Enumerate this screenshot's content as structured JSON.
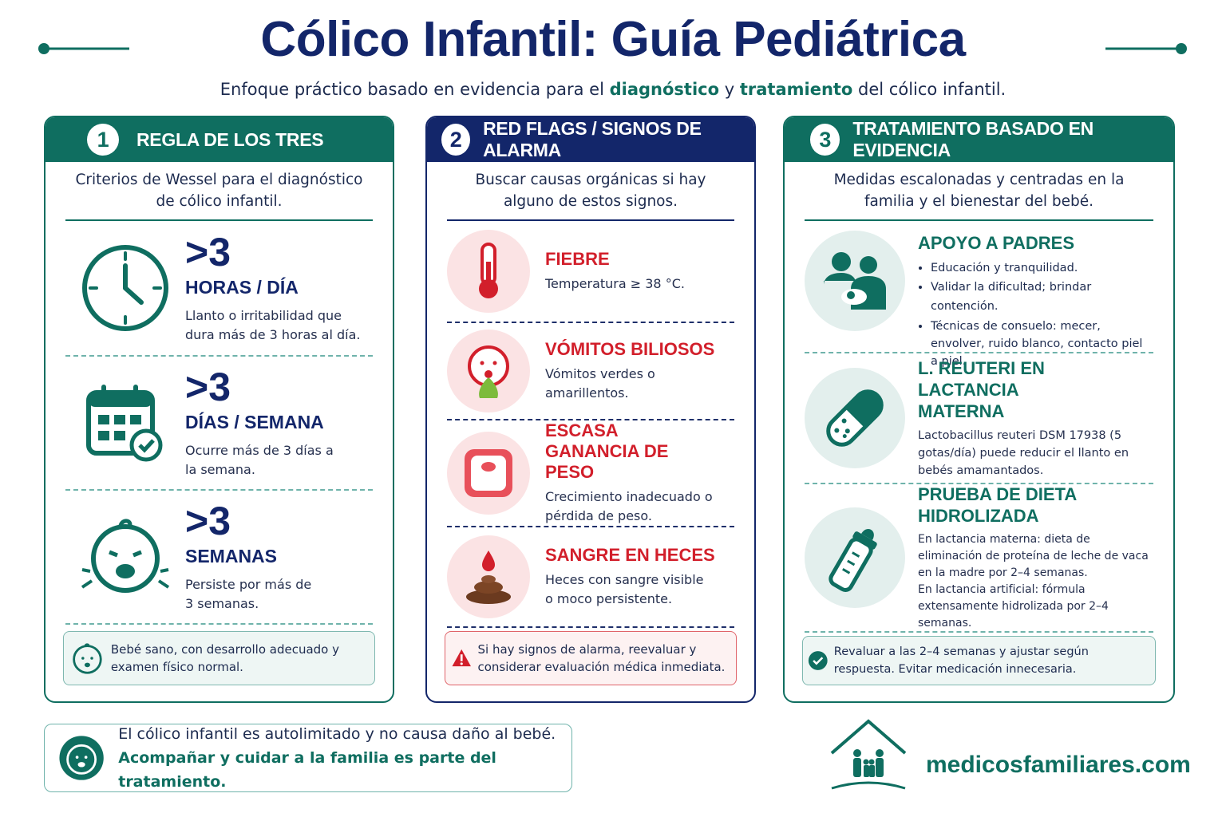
{
  "header": {
    "title": "Cólico Infantil: Guía Pediátrica",
    "subtitle": [
      "Enfoque práctico basado en evidencia para el",
      "diagnóstico",
      "y",
      "tratamiento",
      "del cólico infantil."
    ]
  },
  "panels": [
    {
      "number": 1,
      "title": "REGLA DE LOS TRES",
      "intro": "Criterios de Wessel para el diagnóstico de cólico infantil.",
      "items": [
        {
          "value": ">3",
          "label": "HORAS / DÍA",
          "text": "Llanto o irritabilidad que dura más de 3 horas al día."
        },
        {
          "value": ">3",
          "label": "DÍAS / SEMANA",
          "text": "Ocurre más de 3 días a la semana."
        },
        {
          "value": ">3",
          "label": "SEMANAS",
          "text": "Persiste por más de 3 semanas."
        }
      ],
      "note": "Bebé sano, con desarrollo adecuado y examen físico normal."
    },
    {
      "number": 2,
      "title": "RED FLAGS / SIGNOS DE ALARMA",
      "intro": "Buscar causas orgánicas si hay alguno de estos signos.",
      "items": [
        {
          "title": "FIEBRE",
          "text": "Temperatura ≥ 38 °C."
        },
        {
          "title": "VÓMITOS BILIOSOS",
          "text": "Vómitos verdes o amarillentos."
        },
        {
          "title": "ESCASA GANANCIA DE PESO",
          "text": "Crecimiento inadecuado o pérdida de peso."
        },
        {
          "title": "SANGRE EN HECES",
          "text": "Heces con sangre visible o moco persistente."
        }
      ],
      "note": "Si hay signos de alarma, reevaluar y considerar evaluación médica inmediata."
    },
    {
      "number": 3,
      "title": "TRATAMIENTO BASADO EN EVIDENCIA",
      "intro": "Medidas escalonadas y centradas en la familia y el bienestar del bebé.",
      "items": [
        {
          "title": "APOYO A PADRES",
          "bullets": [
            "Educación y tranquilidad.",
            "Validar la dificultad; brindar contención.",
            "Técnicas de consuelo: mecer, envolver, ruido blanco, contacto piel a piel."
          ]
        },
        {
          "title": "L. REUTERI EN LACTANCIA MATERNA",
          "text": "Lactobacillus reuteri DSM 17938 (5 gotas/día) puede reducir el llanto en bebés amamantados."
        },
        {
          "title": "PRUEBA DE DIETA HIDROLIZADA",
          "lines": [
            "En lactancia materna: dieta de eliminación de proteína de leche de vaca en la madre por 2–4 semanas.",
            "En lactancia artificial: fórmula extensamente hidrolizada por 2–4 semanas."
          ]
        }
      ],
      "note": "Revaluar a las 2–4 semanas y ajustar según respuesta. Evitar medicación innecesaria."
    }
  ],
  "footer": {
    "message": [
      "El cólico infantil es autolimitado y no causa daño al bebé.",
      "Acompañar y cuidar a la familia es parte del tratamiento."
    ],
    "brand": "medicosfamiliares.com"
  }
}
